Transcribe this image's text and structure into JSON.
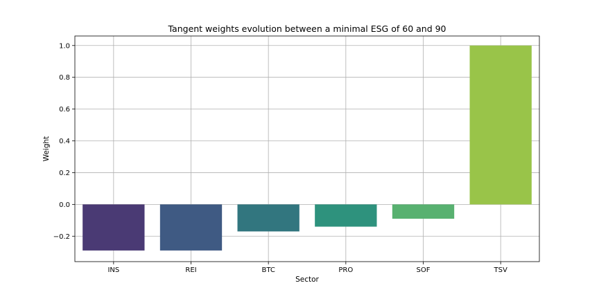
{
  "chart_data": {
    "type": "bar",
    "title": "Tangent weights evolution between a minimal ESG of 60 and 90",
    "xlabel": "Sector",
    "ylabel": "Weight",
    "categories": [
      "INS",
      "REI",
      "BTC",
      "PRO",
      "SOF",
      "TSV"
    ],
    "values": [
      -0.29,
      -0.29,
      -0.17,
      -0.14,
      -0.09,
      1.0
    ],
    "colors": [
      "#4a3a74",
      "#3f5a83",
      "#32767f",
      "#2e927d",
      "#58b170",
      "#99c449"
    ],
    "ylim": [
      -0.36,
      1.06
    ],
    "yticks": [
      -0.2,
      0.0,
      0.2,
      0.4,
      0.6,
      0.8,
      1.0
    ],
    "ytick_labels": [
      "−0.2",
      "0.0",
      "0.2",
      "0.4",
      "0.6",
      "0.8",
      "1.0"
    ],
    "grid": true,
    "legend": "none"
  }
}
